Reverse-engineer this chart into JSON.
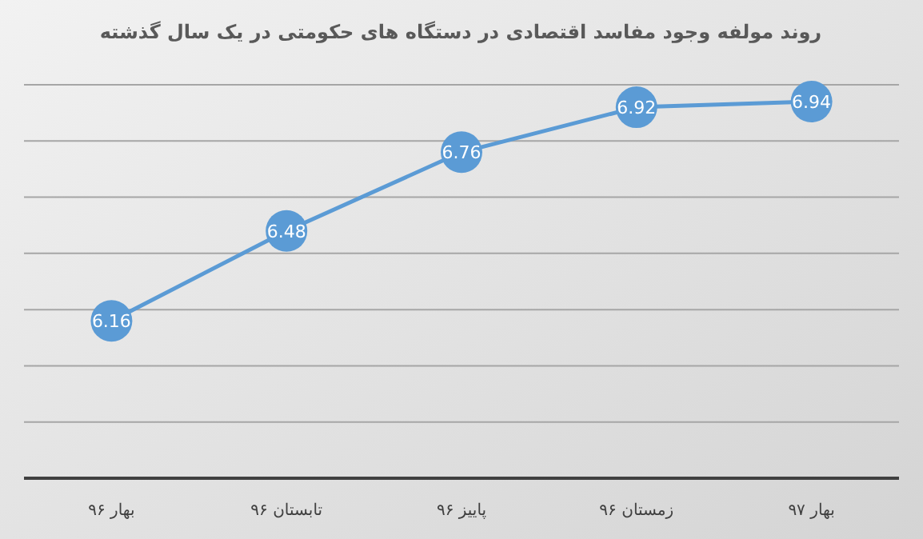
{
  "chart_data": {
    "type": "line",
    "title": "روند مولفه وجود مفاسد اقتصادی در دستگاه های حکومتی در یک سال گذشته",
    "categories": [
      "بهار ۹۶",
      "تابستان ۹۶",
      "پاییز ۹۶",
      "زمستان ۹۶",
      "بهار ۹۷"
    ],
    "series": [
      {
        "color": "#5b9bd5",
        "values": [
          6.16,
          6.48,
          6.76,
          6.92,
          6.94
        ]
      }
    ],
    "ylim": [
      5.6,
      7.0
    ],
    "yticks": [
      {
        "value": 5.6,
        "label": null
      },
      {
        "value": 5.8,
        "label": null
      },
      {
        "value": 6.0,
        "label": null
      },
      {
        "value": 6.2,
        "label": null
      },
      {
        "value": 6.4,
        "label": null
      },
      {
        "value": 6.6,
        "label": null
      },
      {
        "value": 6.8,
        "label": null
      },
      {
        "value": 7.0,
        "label": null
      }
    ],
    "grid": "y",
    "marker": "circle",
    "line_style": "solid",
    "data_labels": true,
    "tick_labels": "x"
  }
}
